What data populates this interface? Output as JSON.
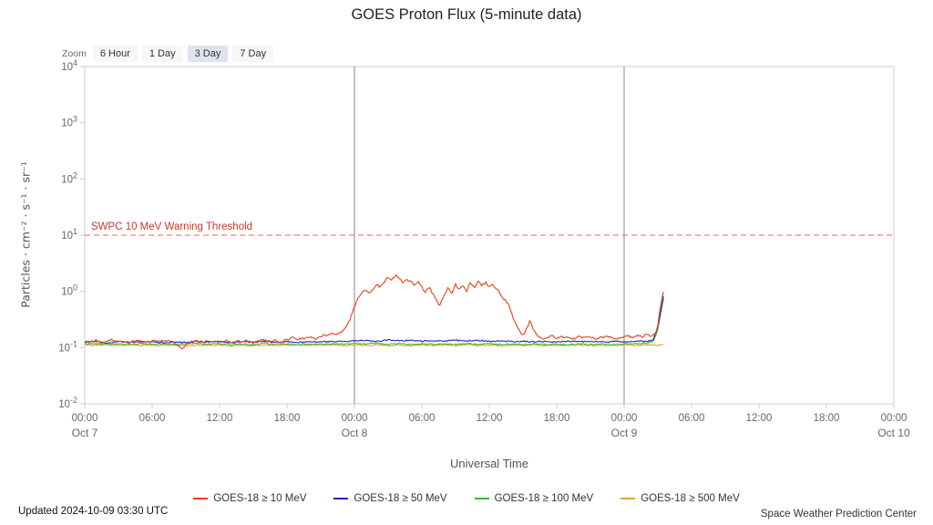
{
  "title": "GOES Proton Flux (5-minute data)",
  "zoom": {
    "label": "Zoom",
    "buttons": [
      {
        "label": "6 Hour",
        "active": false
      },
      {
        "label": "1 Day",
        "active": false
      },
      {
        "label": "3 Day",
        "active": true
      },
      {
        "label": "7 Day",
        "active": false
      }
    ]
  },
  "footer": {
    "updated": "Updated 2024-10-09 03:30 UTC",
    "source": "Space Weather Prediction Center"
  },
  "chart_data": {
    "type": "line",
    "title": "GOES Proton Flux (5-minute data)",
    "xlabel": "Universal Time",
    "ylabel": "Particles · cm⁻² · s⁻¹ · sr⁻¹",
    "x_unit": "hours since Oct 7 00:00 UTC",
    "xlim": [
      0,
      72
    ],
    "y_scale": "log10",
    "ylim_log10": [
      -2,
      4
    ],
    "grid": false,
    "legend_position": "bottom",
    "y_tick_exponents": [
      4,
      3,
      2,
      1,
      0,
      -1,
      -2
    ],
    "x_ticks": [
      {
        "t": 0,
        "label": "00:00"
      },
      {
        "t": 6,
        "label": "06:00"
      },
      {
        "t": 12,
        "label": "12:00"
      },
      {
        "t": 18,
        "label": "18:00"
      },
      {
        "t": 24,
        "label": "00:00"
      },
      {
        "t": 30,
        "label": "06:00"
      },
      {
        "t": 36,
        "label": "12:00"
      },
      {
        "t": 42,
        "label": "18:00"
      },
      {
        "t": 48,
        "label": "00:00"
      },
      {
        "t": 54,
        "label": "06:00"
      },
      {
        "t": 60,
        "label": "12:00"
      },
      {
        "t": 66,
        "label": "18:00"
      },
      {
        "t": 72,
        "label": "00:00"
      }
    ],
    "x_dates": [
      {
        "t": 0,
        "label": "Oct 7"
      },
      {
        "t": 24,
        "label": "Oct 8"
      },
      {
        "t": 48,
        "label": "Oct 9"
      },
      {
        "t": 72,
        "label": "Oct 10"
      }
    ],
    "day_lines": [
      24,
      48
    ],
    "day_line_color": "#888888",
    "threshold": {
      "value": 10,
      "label": "SWPC 10 MeV Warning Threshold",
      "line_color": "#f06055",
      "label_color": "#cf3627"
    },
    "series": [
      {
        "name": "GOES-18 ≥ 10 MeV",
        "color": "#e8401c",
        "points": [
          [
            0,
            0.13
          ],
          [
            0.5,
            0.125
          ],
          [
            1,
            0.134
          ],
          [
            1.5,
            0.121
          ],
          [
            2,
            0.13
          ],
          [
            2.5,
            0.139
          ],
          [
            3,
            0.126
          ],
          [
            3.5,
            0.131
          ],
          [
            4,
            0.121
          ],
          [
            4.5,
            0.134
          ],
          [
            5,
            0.127
          ],
          [
            5.5,
            0.122
          ],
          [
            6,
            0.132
          ],
          [
            6.5,
            0.126
          ],
          [
            7,
            0.131
          ],
          [
            7.5,
            0.135
          ],
          [
            8,
            0.122
          ],
          [
            8.4,
            0.104
          ],
          [
            8.7,
            0.096
          ],
          [
            9,
            0.116
          ],
          [
            9.5,
            0.128
          ],
          [
            10,
            0.132
          ],
          [
            10.5,
            0.124
          ],
          [
            11,
            0.13
          ],
          [
            11.5,
            0.122
          ],
          [
            12,
            0.128
          ],
          [
            12.5,
            0.135
          ],
          [
            13,
            0.124
          ],
          [
            13.5,
            0.13
          ],
          [
            14,
            0.127
          ],
          [
            14.5,
            0.133
          ],
          [
            15,
            0.123
          ],
          [
            15.5,
            0.13
          ],
          [
            16,
            0.135
          ],
          [
            16.5,
            0.127
          ],
          [
            17,
            0.132
          ],
          [
            17.5,
            0.125
          ],
          [
            18,
            0.138
          ],
          [
            18.5,
            0.148
          ],
          [
            19,
            0.139
          ],
          [
            19.5,
            0.147
          ],
          [
            20,
            0.154
          ],
          [
            20.5,
            0.144
          ],
          [
            21,
            0.158
          ],
          [
            21.5,
            0.168
          ],
          [
            22,
            0.182
          ],
          [
            22.5,
            0.178
          ],
          [
            23,
            0.2
          ],
          [
            23.4,
            0.26
          ],
          [
            23.7,
            0.36
          ],
          [
            24,
            0.52
          ],
          [
            24.3,
            0.78
          ],
          [
            24.6,
            0.92
          ],
          [
            25,
            1.02
          ],
          [
            25.3,
            0.94
          ],
          [
            25.7,
            1.12
          ],
          [
            26,
            1.36
          ],
          [
            26.3,
            1.18
          ],
          [
            26.7,
            1.52
          ],
          [
            27,
            1.82
          ],
          [
            27.3,
            1.58
          ],
          [
            27.7,
            1.92
          ],
          [
            28,
            1.68
          ],
          [
            28.3,
            1.42
          ],
          [
            28.7,
            1.6
          ],
          [
            29,
            1.52
          ],
          [
            29.3,
            1.28
          ],
          [
            29.7,
            1.46
          ],
          [
            30,
            1.18
          ],
          [
            30.3,
            0.98
          ],
          [
            30.7,
            1.14
          ],
          [
            31,
            0.88
          ],
          [
            31.3,
            0.68
          ],
          [
            31.6,
            0.56
          ],
          [
            32,
            0.86
          ],
          [
            32.3,
            1.12
          ],
          [
            32.7,
            0.94
          ],
          [
            33,
            1.32
          ],
          [
            33.3,
            1.08
          ],
          [
            33.7,
            1.26
          ],
          [
            34,
            1.02
          ],
          [
            34.3,
            1.38
          ],
          [
            34.7,
            1.18
          ],
          [
            35,
            1.52
          ],
          [
            35.3,
            1.28
          ],
          [
            35.7,
            1.44
          ],
          [
            36,
            1.18
          ],
          [
            36.3,
            1.34
          ],
          [
            36.7,
            1.08
          ],
          [
            37,
            0.9
          ],
          [
            37.3,
            0.74
          ],
          [
            37.7,
            0.58
          ],
          [
            38,
            0.4
          ],
          [
            38.3,
            0.28
          ],
          [
            38.7,
            0.2
          ],
          [
            39,
            0.162
          ],
          [
            39.3,
            0.215
          ],
          [
            39.6,
            0.3
          ],
          [
            40,
            0.2
          ],
          [
            40.4,
            0.158
          ],
          [
            40.8,
            0.142
          ],
          [
            41.2,
            0.152
          ],
          [
            41.6,
            0.16
          ],
          [
            42,
            0.146
          ],
          [
            42.5,
            0.155
          ],
          [
            43,
            0.15
          ],
          [
            43.5,
            0.143
          ],
          [
            44,
            0.156
          ],
          [
            44.5,
            0.148
          ],
          [
            45,
            0.152
          ],
          [
            45.5,
            0.144
          ],
          [
            46,
            0.151
          ],
          [
            46.5,
            0.158
          ],
          [
            47,
            0.149
          ],
          [
            47.5,
            0.145
          ],
          [
            48,
            0.154
          ],
          [
            48.4,
            0.16
          ],
          [
            48.8,
            0.15
          ],
          [
            49.2,
            0.164
          ],
          [
            49.6,
            0.155
          ],
          [
            50,
            0.17
          ],
          [
            50.4,
            0.162
          ],
          [
            50.8,
            0.185
          ],
          [
            51,
            0.26
          ],
          [
            51.2,
            0.48
          ],
          [
            51.35,
            0.72
          ],
          [
            51.5,
            0.98
          ]
        ]
      },
      {
        "name": "GOES-18 ≥ 50 MeV",
        "color": "#2222bb",
        "points": [
          [
            0,
            0.126
          ],
          [
            1,
            0.13
          ],
          [
            2,
            0.122
          ],
          [
            3,
            0.128
          ],
          [
            4,
            0.124
          ],
          [
            5,
            0.129
          ],
          [
            6,
            0.125
          ],
          [
            7,
            0.122
          ],
          [
            8,
            0.127
          ],
          [
            9,
            0.123
          ],
          [
            10,
            0.129
          ],
          [
            11,
            0.125
          ],
          [
            12,
            0.128
          ],
          [
            13,
            0.122
          ],
          [
            14,
            0.127
          ],
          [
            15,
            0.124
          ],
          [
            16,
            0.129
          ],
          [
            17,
            0.125
          ],
          [
            18,
            0.127
          ],
          [
            19,
            0.123
          ],
          [
            20,
            0.129
          ],
          [
            21,
            0.126
          ],
          [
            22,
            0.129
          ],
          [
            23,
            0.127
          ],
          [
            24,
            0.131
          ],
          [
            25,
            0.134
          ],
          [
            26,
            0.129
          ],
          [
            27,
            0.137
          ],
          [
            28,
            0.131
          ],
          [
            29,
            0.135
          ],
          [
            30,
            0.13
          ],
          [
            31,
            0.133
          ],
          [
            32,
            0.129
          ],
          [
            33,
            0.135
          ],
          [
            34,
            0.131
          ],
          [
            35,
            0.134
          ],
          [
            36,
            0.129
          ],
          [
            37,
            0.132
          ],
          [
            38,
            0.127
          ],
          [
            39,
            0.13
          ],
          [
            40,
            0.126
          ],
          [
            41,
            0.129
          ],
          [
            42,
            0.126
          ],
          [
            43,
            0.13
          ],
          [
            44,
            0.127
          ],
          [
            45,
            0.129
          ],
          [
            46,
            0.126
          ],
          [
            47,
            0.129
          ],
          [
            48,
            0.127
          ],
          [
            49,
            0.131
          ],
          [
            50,
            0.129
          ],
          [
            50.6,
            0.138
          ],
          [
            51,
            0.24
          ],
          [
            51.3,
            0.5
          ],
          [
            51.5,
            0.82
          ]
        ]
      },
      {
        "name": "GOES-18 ≥ 100 MeV",
        "color": "#2fbf2f",
        "points": [
          [
            0,
            0.116
          ],
          [
            1,
            0.119
          ],
          [
            2,
            0.113
          ],
          [
            3,
            0.117
          ],
          [
            4,
            0.112
          ],
          [
            5,
            0.118
          ],
          [
            6,
            0.114
          ],
          [
            7,
            0.117
          ],
          [
            8,
            0.112
          ],
          [
            9,
            0.116
          ],
          [
            10,
            0.119
          ],
          [
            11,
            0.114
          ],
          [
            12,
            0.117
          ],
          [
            13,
            0.112
          ],
          [
            14,
            0.116
          ],
          [
            15,
            0.113
          ],
          [
            16,
            0.118
          ],
          [
            17,
            0.114
          ],
          [
            18,
            0.116
          ],
          [
            19,
            0.112
          ],
          [
            20,
            0.117
          ],
          [
            21,
            0.114
          ],
          [
            22,
            0.117
          ],
          [
            23,
            0.115
          ],
          [
            24,
            0.118
          ],
          [
            25,
            0.115
          ],
          [
            26,
            0.118
          ],
          [
            27,
            0.114
          ],
          [
            28,
            0.117
          ],
          [
            29,
            0.113
          ],
          [
            30,
            0.117
          ],
          [
            31,
            0.114
          ],
          [
            32,
            0.116
          ],
          [
            33,
            0.113
          ],
          [
            34,
            0.117
          ],
          [
            35,
            0.114
          ],
          [
            36,
            0.116
          ],
          [
            37,
            0.113
          ],
          [
            38,
            0.116
          ],
          [
            39,
            0.112
          ],
          [
            40,
            0.116
          ],
          [
            41,
            0.113
          ],
          [
            42,
            0.116
          ],
          [
            43,
            0.112
          ],
          [
            44,
            0.116
          ],
          [
            45,
            0.113
          ],
          [
            46,
            0.116
          ],
          [
            47,
            0.113
          ],
          [
            48,
            0.115
          ],
          [
            49,
            0.117
          ],
          [
            50,
            0.119
          ],
          [
            50.6,
            0.13
          ],
          [
            51,
            0.21
          ],
          [
            51.3,
            0.44
          ],
          [
            51.5,
            0.74
          ]
        ]
      },
      {
        "name": "GOES-18 ≥ 500 MeV",
        "color": "#e5a02d",
        "points": [
          [
            0,
            0.112
          ],
          [
            1,
            0.109
          ],
          [
            2,
            0.113
          ],
          [
            3,
            0.108
          ],
          [
            4,
            0.112
          ],
          [
            5,
            0.109
          ],
          [
            6,
            0.112
          ],
          [
            7,
            0.108
          ],
          [
            8,
            0.111
          ],
          [
            9,
            0.108
          ],
          [
            10,
            0.112
          ],
          [
            11,
            0.109
          ],
          [
            12,
            0.111
          ],
          [
            13,
            0.108
          ],
          [
            14,
            0.112
          ],
          [
            15,
            0.108
          ],
          [
            16,
            0.111
          ],
          [
            17,
            0.109
          ],
          [
            18,
            0.112
          ],
          [
            19,
            0.108
          ],
          [
            20,
            0.111
          ],
          [
            21,
            0.109
          ],
          [
            22,
            0.111
          ],
          [
            23,
            0.108
          ],
          [
            24,
            0.112
          ],
          [
            25,
            0.109
          ],
          [
            26,
            0.112
          ],
          [
            27,
            0.108
          ],
          [
            28,
            0.111
          ],
          [
            29,
            0.109
          ],
          [
            30,
            0.112
          ],
          [
            31,
            0.108
          ],
          [
            32,
            0.111
          ],
          [
            33,
            0.108
          ],
          [
            34,
            0.112
          ],
          [
            35,
            0.109
          ],
          [
            36,
            0.111
          ],
          [
            37,
            0.108
          ],
          [
            38,
            0.111
          ],
          [
            39,
            0.109
          ],
          [
            40,
            0.112
          ],
          [
            41,
            0.108
          ],
          [
            42,
            0.111
          ],
          [
            43,
            0.109
          ],
          [
            44,
            0.112
          ],
          [
            45,
            0.108
          ],
          [
            46,
            0.111
          ],
          [
            47,
            0.109
          ],
          [
            48,
            0.111
          ],
          [
            49,
            0.109
          ],
          [
            50,
            0.112
          ],
          [
            51,
            0.11
          ],
          [
            51.5,
            0.113
          ]
        ]
      }
    ]
  }
}
